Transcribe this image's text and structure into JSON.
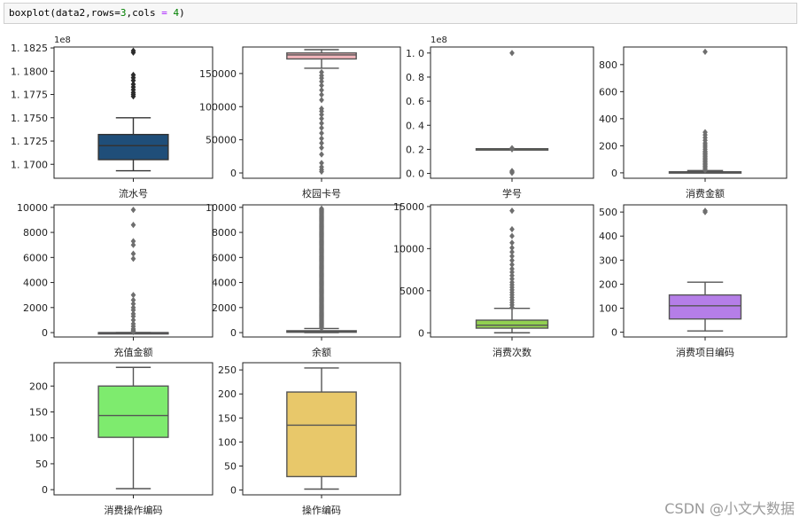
{
  "code": {
    "prefix": "boxplot(data2,rows=",
    "rows": "3",
    "mid": ",cols ",
    "eq": "=",
    "sp": " ",
    "cols": "4",
    "suffix": ")"
  },
  "watermark": "CSDN @小文大数据",
  "chart_data": [
    {
      "type": "box",
      "xlabel": "流水号",
      "color": "#1f4e79",
      "offset_label": "1e8",
      "ylim": [
        1.1685,
        1.1826
      ],
      "yticks": [
        1.17,
        1.1725,
        1.175,
        1.1775,
        1.18,
        1.1825
      ],
      "ytick_labels": [
        "1. 1700",
        "1. 1725",
        "1. 1750",
        "1. 1775",
        "1. 1800",
        "1. 1825"
      ],
      "box": {
        "whisker_low": 1.1693,
        "q1": 1.1705,
        "median": 1.172,
        "q3": 1.1732,
        "whisker_high": 1.175
      },
      "outliers": [
        1.1773,
        1.1775,
        1.1777,
        1.178,
        1.1783,
        1.1786,
        1.179,
        1.1793,
        1.1796,
        1.182,
        1.1822
      ]
    },
    {
      "type": "box",
      "xlabel": "校园卡号",
      "color": "#f4b6bc",
      "ylim": [
        -8000,
        190000
      ],
      "yticks": [
        0,
        50000,
        100000,
        150000
      ],
      "ytick_labels": [
        "0",
        "50000",
        "100000",
        "150000"
      ],
      "box": {
        "whisker_low": 158000,
        "q1": 172000,
        "median": 178000,
        "q3": 181000,
        "whisker_high": 186000
      },
      "outliers": [
        2000,
        5000,
        9000,
        15000,
        28000,
        38000,
        45000,
        52000,
        60000,
        68000,
        75000,
        82000,
        88000,
        93000,
        97000,
        110000,
        118000,
        125000,
        132000,
        138000,
        143000,
        147000,
        152000
      ]
    },
    {
      "type": "box",
      "xlabel": "学号",
      "color": "#9bbb59",
      "offset_label": "1e8",
      "ylim": [
        -0.04,
        1.05
      ],
      "yticks": [
        0.0,
        0.2,
        0.4,
        0.6,
        0.8,
        1.0
      ],
      "ytick_labels": [
        "0. 0",
        "0. 2",
        "0. 4",
        "0. 6",
        "0. 8",
        "1. 0"
      ],
      "box": {
        "whisker_low": 0.205,
        "q1": 0.205,
        "median": 0.205,
        "q3": 0.205,
        "whisker_high": 0.205
      },
      "outliers": [
        0.005,
        0.012,
        0.02,
        0.2,
        0.21,
        1.0
      ]
    },
    {
      "type": "box",
      "xlabel": "消费金额",
      "color": "#c0504d",
      "ylim": [
        -40,
        930
      ],
      "yticks": [
        0,
        200,
        400,
        600,
        800
      ],
      "ytick_labels": [
        "0",
        "200",
        "400",
        "600",
        "800"
      ],
      "box": {
        "whisker_low": 0,
        "q1": 3,
        "median": 5,
        "q3": 8,
        "whisker_high": 17
      },
      "outliers": [
        20,
        30,
        40,
        50,
        60,
        70,
        80,
        90,
        100,
        110,
        120,
        130,
        140,
        150,
        160,
        175,
        190,
        205,
        220,
        240,
        260,
        280,
        300,
        895
      ]
    },
    {
      "type": "box",
      "xlabel": "充值金额",
      "color": "#8064a2",
      "ylim": [
        -350,
        10200
      ],
      "yticks": [
        0,
        2000,
        4000,
        6000,
        8000,
        10000
      ],
      "ytick_labels": [
        "0",
        "2000",
        "4000",
        "6000",
        "8000",
        "10000"
      ],
      "box": {
        "whisker_low": 0,
        "q1": 0,
        "median": 0,
        "q3": 0,
        "whisker_high": 0
      },
      "outliers": [
        50,
        100,
        200,
        300,
        500,
        700,
        1000,
        1300,
        1500,
        1800,
        2000,
        2300,
        2600,
        3000,
        5900,
        6300,
        7000,
        7300,
        8600,
        9800
      ]
    },
    {
      "type": "box",
      "xlabel": "余额",
      "color": "#4bacc6",
      "ylim": [
        -350,
        10200
      ],
      "yticks": [
        0,
        2000,
        4000,
        6000,
        8000,
        10000
      ],
      "ytick_labels": [
        "0",
        "2000",
        "4000",
        "6000",
        "8000",
        "10000"
      ],
      "box": {
        "whisker_low": 0,
        "q1": 30,
        "median": 80,
        "q3": 150,
        "whisker_high": 330
      },
      "outliers": "dense 350-9900"
    },
    {
      "type": "box",
      "xlabel": "消费次数",
      "color": "#92d050",
      "ylim": [
        -500,
        15200
      ],
      "yticks": [
        0,
        5000,
        10000,
        15000
      ],
      "ytick_labels": [
        "0",
        "5000",
        "10000",
        "15000"
      ],
      "box": {
        "whisker_low": 0,
        "q1": 550,
        "median": 900,
        "q3": 1500,
        "whisker_high": 2900
      },
      "outliers": [
        3000,
        3300,
        3600,
        3900,
        4200,
        4500,
        4800,
        5100,
        5400,
        5700,
        6000,
        6400,
        6800,
        7200,
        7600,
        8100,
        8600,
        9100,
        9600,
        10100,
        10700,
        11500,
        12300,
        14500
      ]
    },
    {
      "type": "box",
      "xlabel": "消费项目编码",
      "color": "#b57ee8",
      "ylim": [
        -20,
        530
      ],
      "yticks": [
        0,
        100,
        200,
        300,
        400,
        500
      ],
      "ytick_labels": [
        "0",
        "100",
        "200",
        "300",
        "400",
        "500"
      ],
      "box": {
        "whisker_low": 5,
        "q1": 55,
        "median": 110,
        "q3": 155,
        "whisker_high": 208
      },
      "outliers": [
        500,
        505
      ]
    },
    {
      "type": "box",
      "xlabel": "消费操作编码",
      "color": "#7eeb6e",
      "ylim": [
        -10,
        245
      ],
      "yticks": [
        0,
        50,
        100,
        150,
        200
      ],
      "ytick_labels": [
        "0",
        "50",
        "100",
        "150",
        "200"
      ],
      "box": {
        "whisker_low": 2,
        "q1": 101,
        "median": 143,
        "q3": 200,
        "whisker_high": 236
      },
      "outliers": []
    },
    {
      "type": "box",
      "xlabel": "操作编码",
      "color": "#e8c86a",
      "ylim": [
        -10,
        265
      ],
      "yticks": [
        0,
        50,
        100,
        150,
        200,
        250
      ],
      "ytick_labels": [
        "0",
        "50",
        "100",
        "150",
        "200",
        "250"
      ],
      "box": {
        "whisker_low": 2,
        "q1": 28,
        "median": 135,
        "q3": 204,
        "whisker_high": 254
      },
      "outliers": []
    }
  ]
}
